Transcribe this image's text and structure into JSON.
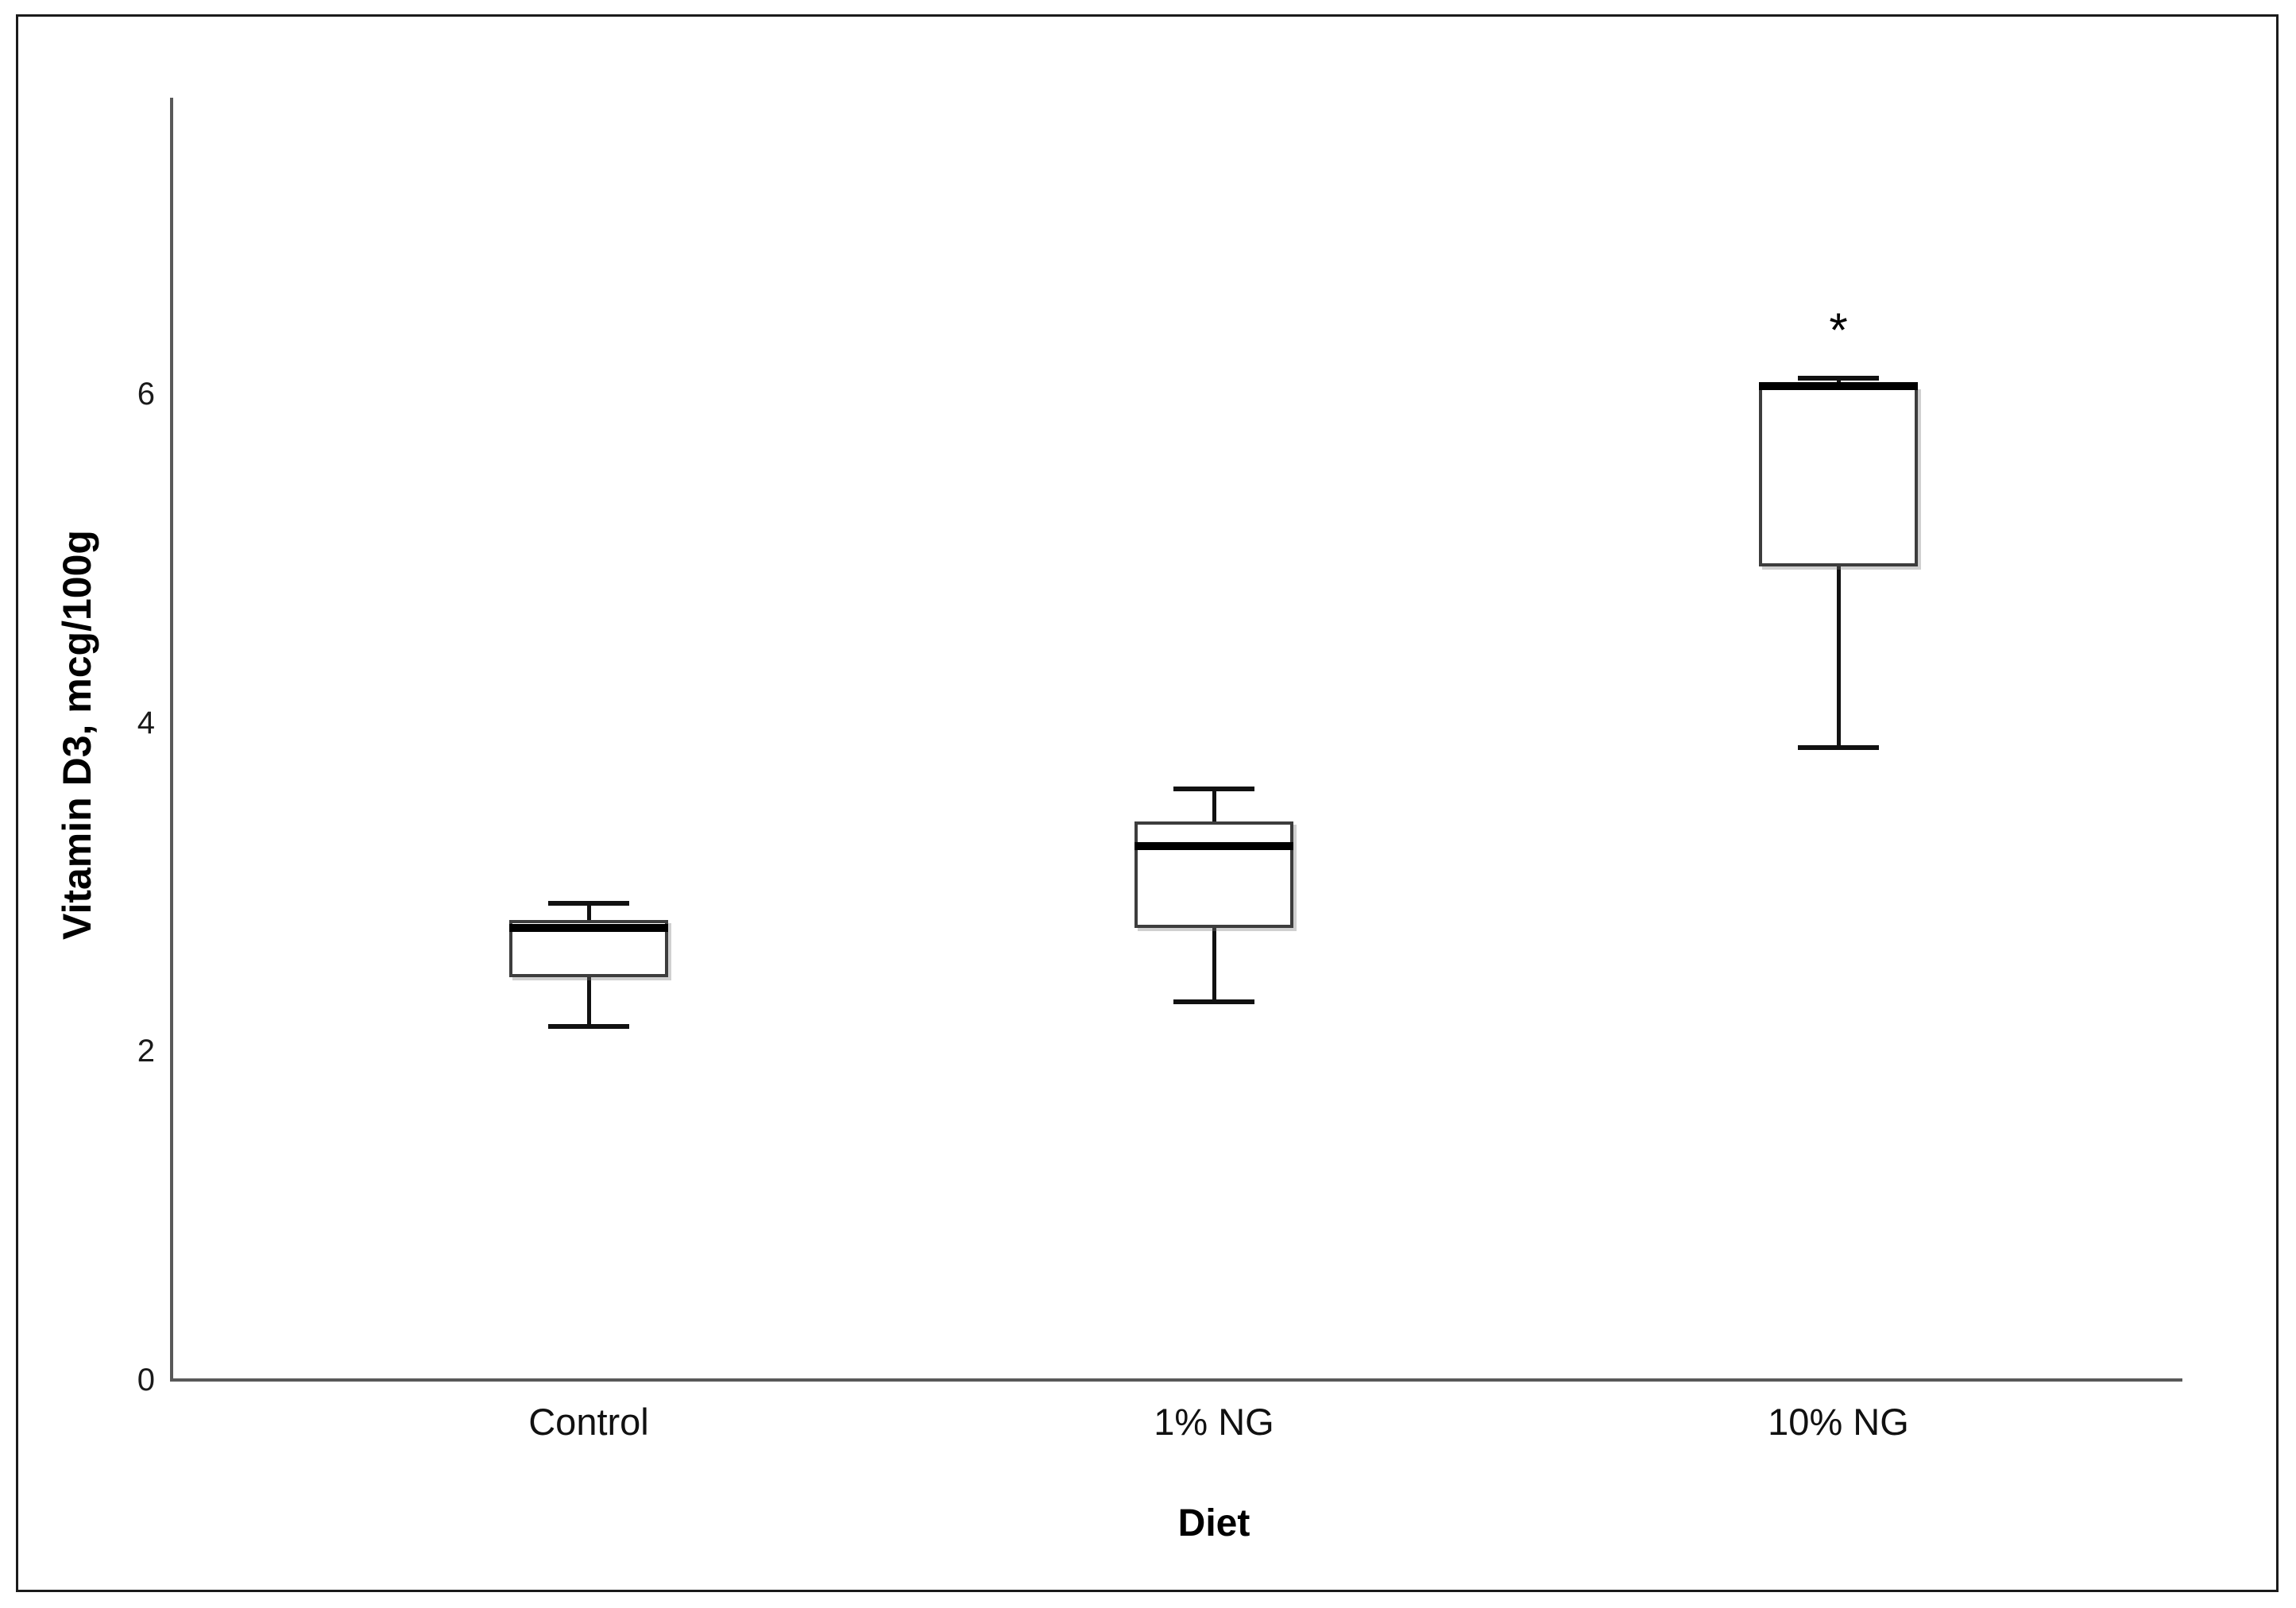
{
  "figure": {
    "background": "#ffffff",
    "frame_color": "#1b1b1b",
    "axis_line_color": "#595959",
    "box_border_color": "#3d3d3d",
    "median_color": "#000000",
    "whisker_color": "#111111",
    "tick_label_color": "#1a1a1a"
  },
  "chart_data": {
    "type": "box",
    "title": "",
    "xlabel": "Diet",
    "ylabel": "Vitamin D3, mcg/100g",
    "categories": [
      "Control",
      "1% NG",
      "10% NG"
    ],
    "yticks": [
      0,
      2,
      4,
      6
    ],
    "ylim": [
      0,
      7.8
    ],
    "grid": false,
    "legend": false,
    "series": [
      {
        "name": "Control",
        "whisker_low": 2.15,
        "q1": 2.45,
        "median": 2.75,
        "q3": 2.8,
        "whisker_high": 2.9,
        "annotation": ""
      },
      {
        "name": "1% NG",
        "whisker_low": 2.3,
        "q1": 2.75,
        "median": 3.25,
        "q3": 3.4,
        "whisker_high": 3.6,
        "annotation": ""
      },
      {
        "name": "10% NG",
        "whisker_low": 3.85,
        "q1": 4.95,
        "median": 6.05,
        "q3": 6.05,
        "whisker_high": 6.1,
        "annotation": "*"
      }
    ]
  }
}
